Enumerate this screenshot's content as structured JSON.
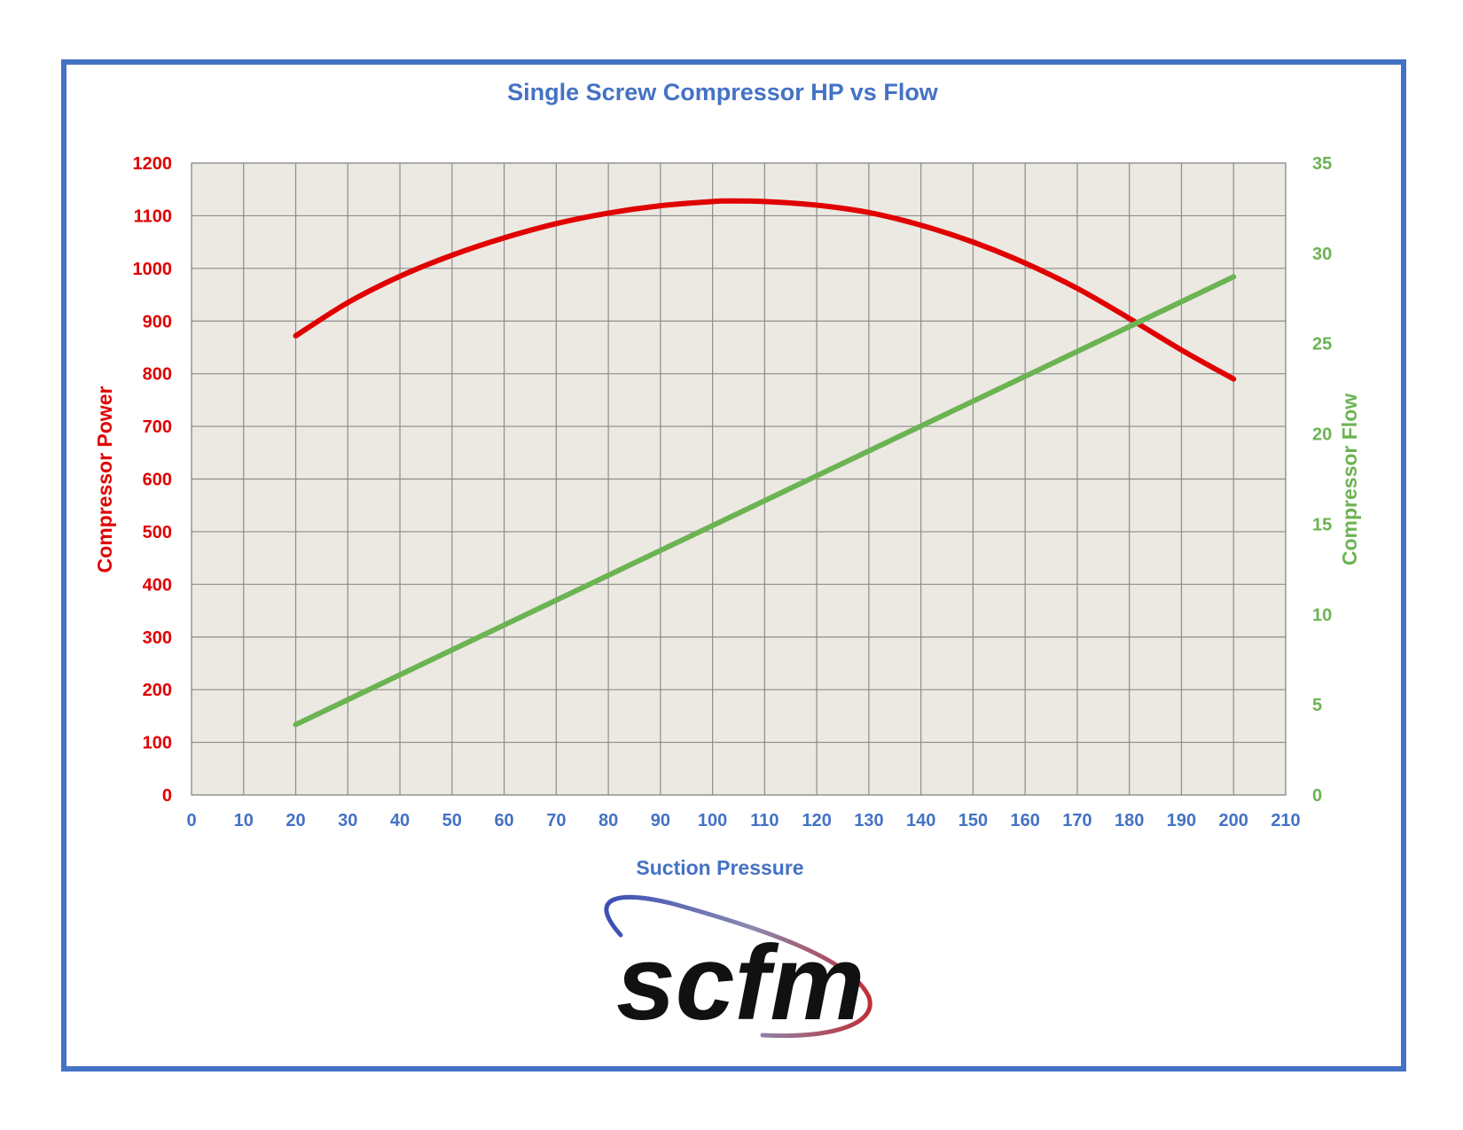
{
  "chart_data": {
    "type": "line",
    "title": "Single Screw Compressor HP vs Flow",
    "xlabel": "Suction Pressure",
    "ylabel_left": "Compressor Power",
    "ylabel_right": "Compressor Flow",
    "xlim": [
      0,
      210
    ],
    "ylim_left": [
      0,
      1200
    ],
    "ylim_right": [
      0,
      35
    ],
    "x_ticks": [
      0,
      10,
      20,
      30,
      40,
      50,
      60,
      70,
      80,
      90,
      100,
      110,
      120,
      130,
      140,
      150,
      160,
      170,
      180,
      190,
      200,
      210
    ],
    "y_left_ticks": [
      0,
      100,
      200,
      300,
      400,
      500,
      600,
      700,
      800,
      900,
      1000,
      1100,
      1200
    ],
    "y_right_ticks": [
      0,
      5,
      10,
      15,
      20,
      25,
      30,
      35
    ],
    "grid": true,
    "plot_background": "#ece9e2",
    "series": [
      {
        "name": "Compressor Power",
        "axis": "left",
        "color": "#e00000",
        "x": [
          20,
          30,
          40,
          50,
          60,
          70,
          80,
          90,
          100,
          103,
          110,
          120,
          130,
          140,
          150,
          160,
          170,
          180,
          190,
          200
        ],
        "values": [
          872,
          935,
          985,
          1025,
          1058,
          1085,
          1105,
          1119,
          1127,
          1128,
          1127,
          1120,
          1106,
          1082,
          1050,
          1010,
          962,
          905,
          845,
          790
        ]
      },
      {
        "name": "Compressor Flow",
        "axis": "right",
        "color": "#6cb353",
        "x": [
          20,
          200
        ],
        "values": [
          3.9,
          28.7
        ]
      }
    ]
  },
  "logo": {
    "text": "scfm",
    "arc_color_left": "#3a4fb5",
    "arc_color_right": "#c0303a"
  },
  "frame_color": "#4472c4"
}
